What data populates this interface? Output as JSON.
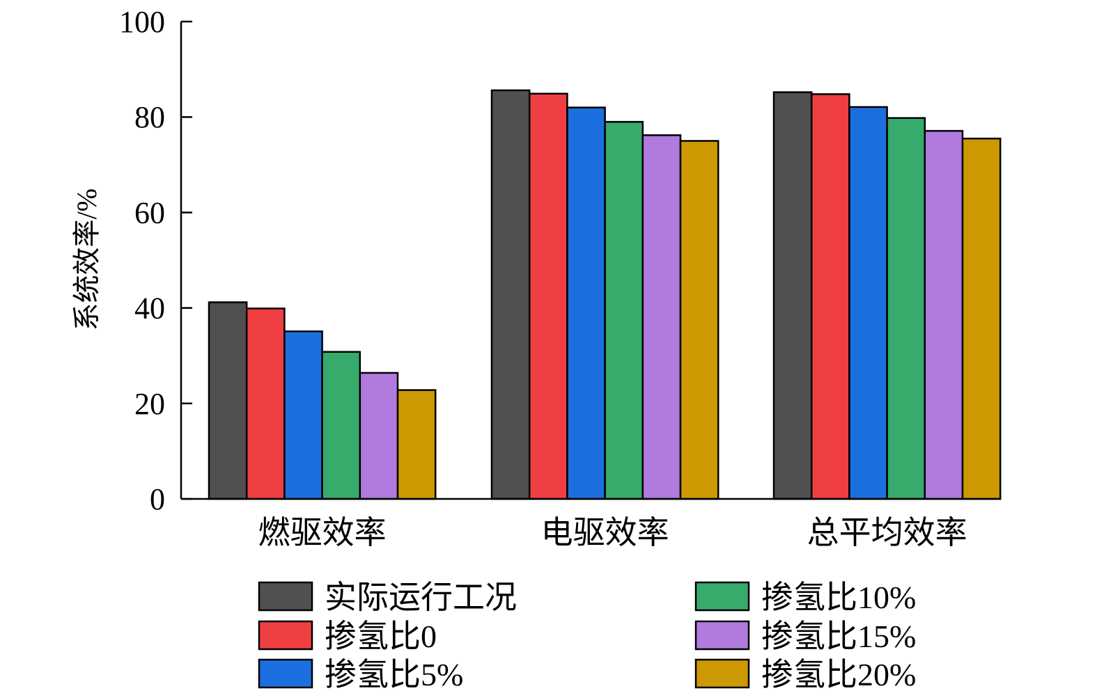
{
  "chart_data": {
    "type": "bar",
    "ylabel": "系统效率/%",
    "xlabel": "",
    "ylim": [
      0,
      100
    ],
    "yticks": [
      0,
      20,
      40,
      60,
      80,
      100
    ],
    "categories": [
      "燃驱效率",
      "电驱效率",
      "总平均效率"
    ],
    "series": [
      {
        "name": "实际运行工况",
        "color": "#505050",
        "values": [
          41.2,
          85.6,
          85.2
        ]
      },
      {
        "name": "掺氢比0",
        "color": "#ef3f42",
        "values": [
          39.9,
          84.9,
          84.8
        ]
      },
      {
        "name": "掺氢比5%",
        "color": "#1c6fde",
        "values": [
          35.1,
          82.0,
          82.1
        ]
      },
      {
        "name": "掺氢比10%",
        "color": "#37ab6b",
        "values": [
          30.8,
          79.0,
          79.8
        ]
      },
      {
        "name": "掺氢比15%",
        "color": "#b07adf",
        "values": [
          26.4,
          76.2,
          77.1
        ]
      },
      {
        "name": "掺氢比20%",
        "color": "#cc9902",
        "values": [
          22.8,
          75.0,
          75.5
        ]
      }
    ],
    "legend": "bottom"
  }
}
